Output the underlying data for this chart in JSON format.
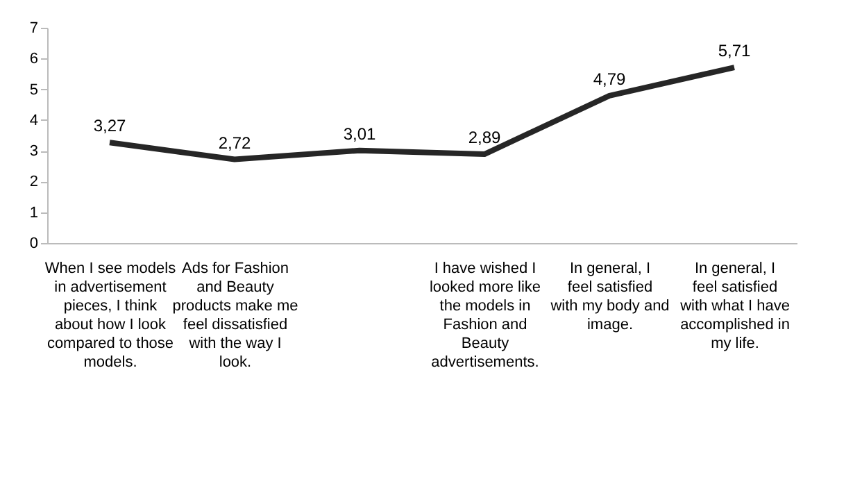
{
  "chart_data": {
    "type": "line",
    "categories": [
      "When I see models in advertisement pieces, I think about how I look compared to those models.",
      "Ads for Fashion and Beauty products make me feel dissatisfied with the way I look.",
      null,
      "I have wished I looked more like the models in Fashion and Beauty advertisements.",
      "In general, I feel satisfied with my body and image.",
      "In general, I feel satisfied with what I have accomplished in my life."
    ],
    "series": [
      {
        "color": "#262626",
        "values": [
          3.27,
          2.72,
          3.01,
          2.89,
          4.79,
          5.71
        ],
        "value_labels": [
          "3,27",
          "2,72",
          "3,01",
          "2,89",
          "4,79",
          "5,71"
        ]
      }
    ],
    "ylim": [
      0,
      7
    ],
    "yticks": [
      0,
      1,
      2,
      3,
      4,
      5,
      6,
      7
    ],
    "grid": false,
    "legend": false,
    "marker": "none",
    "line_style": "solid"
  }
}
